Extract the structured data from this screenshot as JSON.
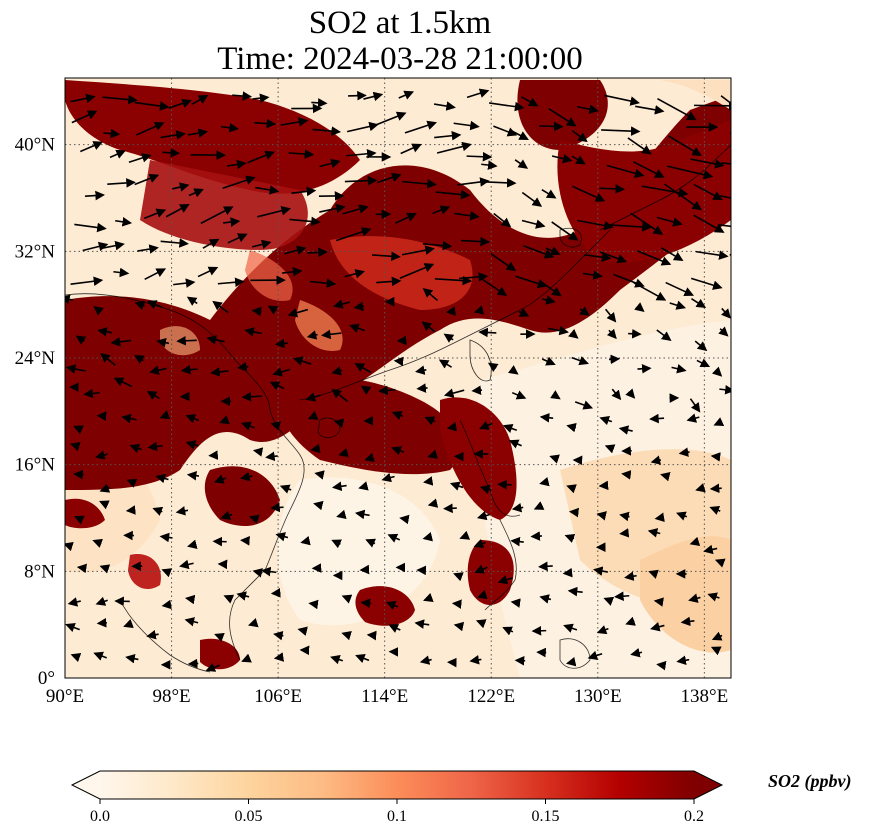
{
  "title": {
    "line1": "SO2 at 1.5km",
    "line2": "Time: 2024-03-28 21:00:00"
  },
  "map": {
    "variable": "SO2",
    "level": "1.5km",
    "extent": {
      "lon": [
        90,
        140
      ],
      "lat": [
        0,
        45
      ]
    },
    "gridlines": true,
    "lon_ticks": [
      {
        "value": 90,
        "label": "90°E"
      },
      {
        "value": 98,
        "label": "98°E"
      },
      {
        "value": 106,
        "label": "106°E"
      },
      {
        "value": 114,
        "label": "114°E"
      },
      {
        "value": 122,
        "label": "122°E"
      },
      {
        "value": 130,
        "label": "130°E"
      },
      {
        "value": 138,
        "label": "138°E"
      }
    ],
    "lat_ticks": [
      {
        "value": 0,
        "label": "0°"
      },
      {
        "value": 8,
        "label": "8°N"
      },
      {
        "value": 16,
        "label": "16°N"
      },
      {
        "value": 24,
        "label": "24°N"
      },
      {
        "value": 32,
        "label": "32°N"
      },
      {
        "value": 40,
        "label": "40°N"
      }
    ],
    "overlay": "wind vectors",
    "palette": "OrRd"
  },
  "colorbar": {
    "title": "SO2 (ppbv)",
    "min": 0.0,
    "max": 0.2,
    "extend": "both",
    "ticks": [
      {
        "value": 0.0,
        "label": "0.0"
      },
      {
        "value": 0.05,
        "label": "0.05"
      },
      {
        "value": 0.1,
        "label": "0.1"
      },
      {
        "value": 0.15,
        "label": "0.15"
      },
      {
        "value": 0.2,
        "label": "0.2"
      }
    ],
    "colors": [
      "#fff7ec",
      "#fee8c8",
      "#fdd49e",
      "#fdbb84",
      "#fc8d59",
      "#ef6548",
      "#d7301f",
      "#b30000",
      "#7f0000"
    ]
  }
}
